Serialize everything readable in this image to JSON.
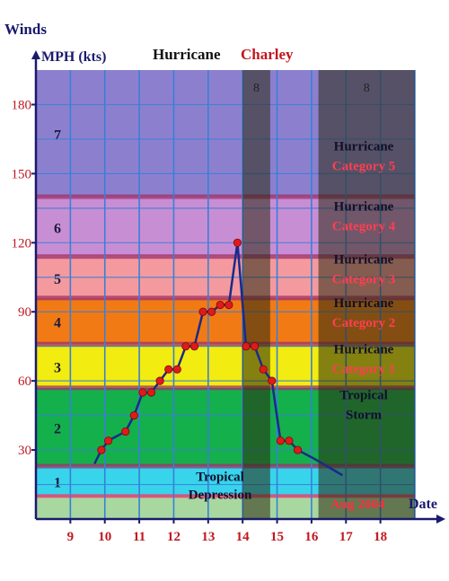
{
  "chart_data": {
    "type": "line",
    "title_left": "Hurricane",
    "title_right": "Charley",
    "ylabel_top": "Winds",
    "ylabel_units": "MPH (kts)",
    "xlabel": "Date",
    "xnote": "Aug 2004",
    "xlim": [
      8,
      19
    ],
    "ylim": [
      0,
      195
    ],
    "x_ticks": [
      9,
      10,
      11,
      12,
      13,
      14,
      15,
      16,
      17,
      18
    ],
    "y_ticks": [
      30,
      60,
      90,
      120,
      150,
      180
    ],
    "colors": {
      "grid": "#3a7fd6",
      "axis": "#1a1a6e",
      "tick_text": "#c0181f",
      "line": "#1a2a8a",
      "marker": "#e01a1a",
      "title_right": "#c0181f",
      "dark_overlay": "#2a2a10"
    },
    "bands": [
      {
        "level": "1",
        "from": 10,
        "to": 23,
        "color": "#38d4ec"
      },
      {
        "level": "2",
        "from": 23,
        "to": 57,
        "color": "#14b04c"
      },
      {
        "level": "3",
        "from": 57,
        "to": 76,
        "color": "#f2ec10"
      },
      {
        "level": "4",
        "from": 76,
        "to": 96,
        "color": "#f27a14"
      },
      {
        "level": "5",
        "from": 96,
        "to": 114,
        "color": "#f49a9e"
      },
      {
        "level": "6",
        "from": 114,
        "to": 140,
        "color": "#c88ed4"
      },
      {
        "level": "7",
        "from": 140,
        "to": 195,
        "color": "#8c80ce"
      }
    ],
    "bottom_band": {
      "from": 0,
      "to": 10,
      "color": "#a8d8a0"
    },
    "category_labels": [
      {
        "line1": "Hurricane",
        "line2": "Category 5",
        "y": 160
      },
      {
        "line1": "Hurricane",
        "line2": "Category 4",
        "y": 134
      },
      {
        "line1": "Hurricane",
        "line2": "Category 3",
        "y": 111
      },
      {
        "line1": "Hurricane",
        "line2": "Category 2",
        "y": 92
      },
      {
        "line1": "Hurricane",
        "line2": "Category 1",
        "y": 72
      },
      {
        "line1": "Tropical",
        "line2": "Storm",
        "y": 52
      }
    ],
    "depression_label": {
      "line1": "Tropical",
      "line2": "Depression"
    },
    "dark_regions": [
      {
        "from": 14.0,
        "to": 14.8,
        "label": "8"
      },
      {
        "from": 16.2,
        "to": 19.0,
        "label": "8"
      }
    ],
    "series": [
      {
        "x": [
          9.7,
          9.9,
          10.1,
          10.6,
          10.85,
          11.1,
          11.35,
          11.6,
          11.85,
          12.1,
          12.35,
          12.6,
          12.85,
          13.1,
          13.35,
          13.6,
          13.85,
          14.1,
          14.35,
          14.6,
          14.85,
          15.1,
          15.35,
          15.6,
          16.1,
          16.9
        ],
        "y": [
          24,
          30,
          34,
          38,
          45,
          55,
          55,
          60,
          65,
          65,
          75,
          75,
          90,
          90,
          93,
          93,
          120,
          75,
          75,
          65,
          60,
          34,
          34,
          30,
          26,
          19
        ],
        "markers": [
          false,
          true,
          true,
          true,
          true,
          true,
          true,
          true,
          true,
          true,
          true,
          true,
          true,
          true,
          true,
          true,
          true,
          true,
          true,
          true,
          true,
          true,
          true,
          true,
          false,
          false
        ]
      }
    ]
  }
}
